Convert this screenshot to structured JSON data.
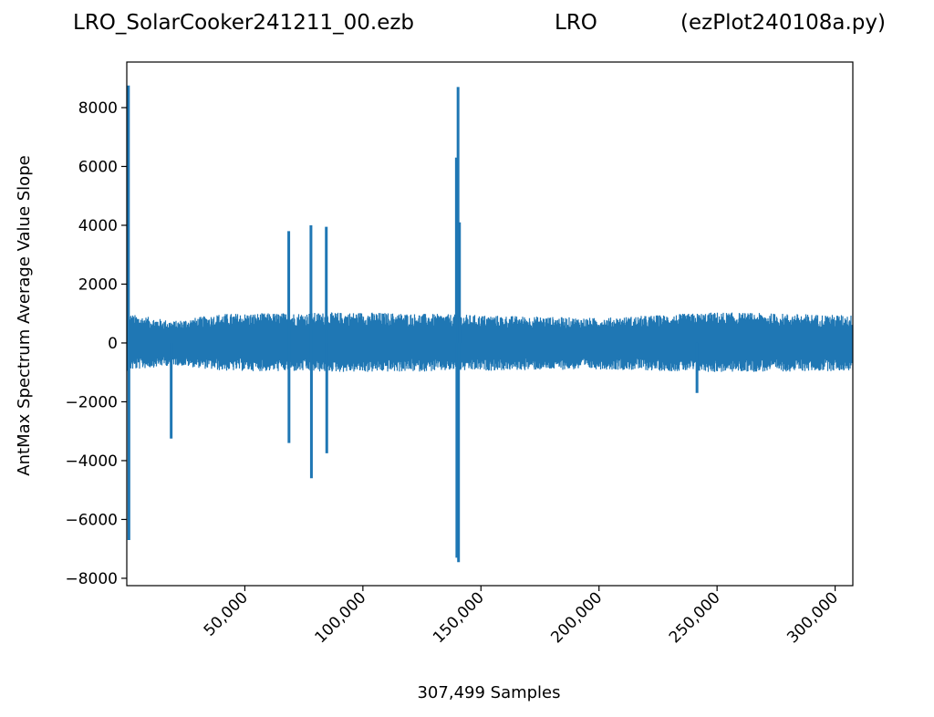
{
  "title": {
    "left": "LRO_SolarCooker241211_00.ezb",
    "middle": "LRO",
    "right": "(ezPlot240108a.py)"
  },
  "chart_data": {
    "type": "line",
    "title": "LRO_SolarCooker241211_00.ezb LRO (ezPlot240108a.py)",
    "xlabel": "307,499 Samples",
    "ylabel": "AntMax Spectrum Average Value Slope",
    "xlim": [
      0,
      307499
    ],
    "ylim": [
      -8250,
      9550
    ],
    "x_ticks": [
      50000,
      100000,
      150000,
      200000,
      250000,
      300000
    ],
    "x_tick_labels": [
      "50,000",
      "100,000",
      "150,000",
      "200,000",
      "250,000",
      "300,000"
    ],
    "y_ticks": [
      -8000,
      -6000,
      -4000,
      -2000,
      0,
      2000,
      4000,
      6000,
      8000
    ],
    "y_tick_labels": [
      "−8000",
      "−6000",
      "−4000",
      "−2000",
      "0",
      "2000",
      "4000",
      "6000",
      "8000"
    ],
    "grid": false,
    "line_color": "#1f77b4",
    "series": [
      {
        "noise_envelope": {
          "x": [
            0,
            20000,
            40000,
            100000,
            150000,
            200000,
            250000,
            307499
          ],
          "upper": [
            1000,
            750,
            1000,
            1050,
            950,
            850,
            1050,
            950
          ],
          "lower": [
            -950,
            -750,
            -950,
            -1000,
            -950,
            -900,
            -1000,
            -950
          ]
        },
        "spikes": [
          {
            "x": 700,
            "y": 8750
          },
          {
            "x": 900,
            "y": -6700
          },
          {
            "x": 18800,
            "y": -3250
          },
          {
            "x": 68600,
            "y": 3800
          },
          {
            "x": 68700,
            "y": -3400
          },
          {
            "x": 78000,
            "y": 4000
          },
          {
            "x": 78200,
            "y": -4600
          },
          {
            "x": 84500,
            "y": 3950
          },
          {
            "x": 84700,
            "y": -3750
          },
          {
            "x": 139600,
            "y": 6300
          },
          {
            "x": 139800,
            "y": -7300
          },
          {
            "x": 140300,
            "y": 8700
          },
          {
            "x": 140500,
            "y": -7450
          },
          {
            "x": 140900,
            "y": 4100
          },
          {
            "x": 241500,
            "y": -1700
          }
        ]
      }
    ]
  }
}
